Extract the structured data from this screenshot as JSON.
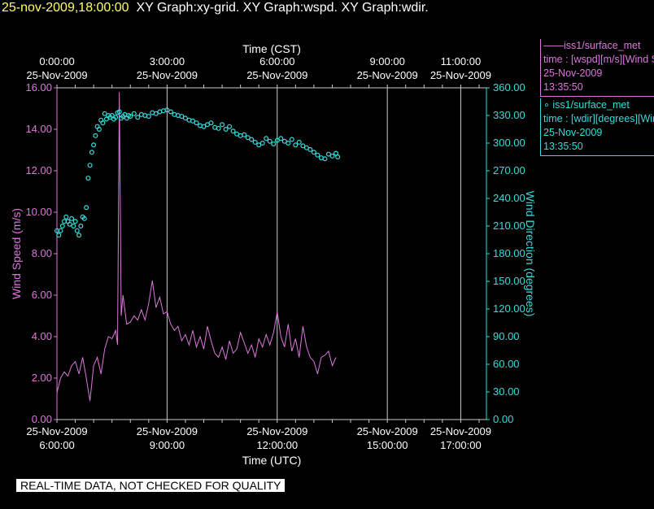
{
  "title": {
    "timestamp": "25-nov-2009,18:00:00",
    "graphs": "XY Graph:xy-grid.  XY Graph:wspd.  XY Graph:wdir."
  },
  "warning": "REAL-TIME DATA, NOT CHECKED FOR QUALITY",
  "legend": [
    {
      "marker": "——",
      "name": "iss1/surface_met",
      "vars": "time : [wspd][m/s][Wind Speed]",
      "date": "25-Nov-2009",
      "time": "13:35:50",
      "color": "#dd77dd"
    },
    {
      "marker": "∘",
      "name": "iss1/surface_met",
      "vars": "time : [wdir][degrees][Wind Direction]",
      "date": "25-Nov-2009",
      "time": "13:35:50",
      "color": "#33dddd"
    }
  ],
  "colors": {
    "speed": "#dd77dd",
    "direction": "#33dddd",
    "grid": "#cccccc",
    "title_time": "#ffff66",
    "text": "#ffffff"
  },
  "chart_data": {
    "type": "line",
    "xlabel_bottom": "Time (UTC)",
    "xlabel_top": "Time (CST)",
    "ylabel_left": "Wind Speed (m/s)",
    "ylabel_right": "Wind Direction (degrees)",
    "x_range_utc_hours": [
      6.0,
      17.7
    ],
    "ylim_left": [
      0,
      16
    ],
    "ylim_right": [
      0,
      360
    ],
    "grid": true,
    "legend_position": "right",
    "left_ticks": [
      "0.00",
      "2.00",
      "4.00",
      "6.00",
      "8.00",
      "10.00",
      "12.00",
      "14.00",
      "16.00"
    ],
    "right_ticks": [
      "0.00",
      "30.00",
      "60.00",
      "90.00",
      "120.00",
      "150.00",
      "180.00",
      "210.00",
      "240.00",
      "270.00",
      "300.00",
      "330.00",
      "360.00"
    ],
    "bottom_ticks": [
      {
        "t": 6.0,
        "date": "25-Nov-2009",
        "time": "6:00:00"
      },
      {
        "t": 9.0,
        "date": "25-Nov-2009",
        "time": "9:00:00"
      },
      {
        "t": 12.0,
        "date": "25-Nov-2009",
        "time": "12:00:00"
      },
      {
        "t": 15.0,
        "date": "25-Nov-2009",
        "time": "15:00:00"
      },
      {
        "t": 17.0,
        "date": "25-Nov-2009",
        "time": "17:00:00"
      }
    ],
    "top_ticks": [
      {
        "t": 6.0,
        "time": "0:00:00",
        "date": "25-Nov-2009"
      },
      {
        "t": 9.0,
        "time": "3:00:00",
        "date": "25-Nov-2009"
      },
      {
        "t": 12.0,
        "time": "6:00:00",
        "date": "25-Nov-2009"
      },
      {
        "t": 15.0,
        "time": "9:00:00",
        "date": "25-Nov-2009"
      },
      {
        "t": 17.0,
        "time": "11:00:00",
        "date": "25-Nov-2009"
      }
    ],
    "series": [
      {
        "name": "iss1/surface_met wspd",
        "axis": "left",
        "style": "line",
        "x_utc_hours": [
          6.0,
          6.1,
          6.2,
          6.3,
          6.4,
          6.5,
          6.6,
          6.7,
          6.8,
          6.9,
          7.0,
          7.1,
          7.2,
          7.3,
          7.4,
          7.5,
          7.6,
          7.65,
          7.7,
          7.75,
          7.8,
          7.9,
          8.0,
          8.1,
          8.2,
          8.3,
          8.4,
          8.5,
          8.6,
          8.7,
          8.8,
          8.9,
          9.0,
          9.1,
          9.2,
          9.3,
          9.4,
          9.5,
          9.6,
          9.7,
          9.8,
          9.9,
          10.0,
          10.1,
          10.2,
          10.3,
          10.4,
          10.5,
          10.6,
          10.7,
          10.8,
          10.9,
          11.0,
          11.1,
          11.2,
          11.3,
          11.4,
          11.5,
          11.6,
          11.7,
          11.8,
          11.9,
          12.0,
          12.1,
          12.2,
          12.3,
          12.4,
          12.5,
          12.6,
          12.7,
          12.8,
          12.9,
          13.0,
          13.1,
          13.2,
          13.3,
          13.4,
          13.5,
          13.6
        ],
        "values": [
          1.3,
          2.0,
          2.3,
          2.1,
          2.6,
          2.8,
          2.2,
          3.0,
          2.0,
          0.9,
          2.6,
          3.0,
          2.2,
          3.4,
          4.0,
          3.9,
          4.3,
          3.6,
          15.8,
          5.0,
          6.0,
          4.6,
          4.7,
          5.0,
          4.8,
          5.3,
          4.8,
          5.6,
          6.7,
          5.4,
          5.9,
          5.1,
          5.2,
          4.6,
          4.3,
          4.5,
          3.8,
          4.1,
          3.6,
          4.3,
          3.5,
          4.0,
          3.4,
          4.5,
          3.8,
          3.2,
          3.0,
          3.5,
          2.9,
          3.8,
          3.2,
          3.4,
          4.2,
          3.7,
          3.2,
          3.6,
          3.0,
          3.9,
          3.5,
          4.1,
          3.6,
          4.2,
          5.2,
          4.0,
          3.5,
          4.6,
          3.3,
          3.9,
          3.0,
          4.5,
          3.5,
          3.0,
          2.8,
          2.2,
          3.0,
          3.1,
          3.3,
          2.6,
          3.0
        ]
      },
      {
        "name": "iss1/surface_met wdir",
        "axis": "right",
        "style": "points",
        "x_utc_hours": [
          6.0,
          6.05,
          6.1,
          6.15,
          6.2,
          6.25,
          6.3,
          6.35,
          6.4,
          6.45,
          6.5,
          6.55,
          6.6,
          6.65,
          6.7,
          6.75,
          6.8,
          6.85,
          6.9,
          6.95,
          7.0,
          7.05,
          7.1,
          7.15,
          7.2,
          7.25,
          7.3,
          7.35,
          7.4,
          7.45,
          7.5,
          7.55,
          7.6,
          7.65,
          7.7,
          7.75,
          7.8,
          7.85,
          7.9,
          7.95,
          8.0,
          8.1,
          8.2,
          8.3,
          8.4,
          8.5,
          8.6,
          8.7,
          8.8,
          8.9,
          9.0,
          9.1,
          9.2,
          9.3,
          9.4,
          9.5,
          9.6,
          9.7,
          9.8,
          9.9,
          10.0,
          10.1,
          10.2,
          10.3,
          10.4,
          10.5,
          10.6,
          10.7,
          10.8,
          10.9,
          11.0,
          11.1,
          11.2,
          11.3,
          11.4,
          11.5,
          11.6,
          11.7,
          11.8,
          11.9,
          12.0,
          12.1,
          12.2,
          12.3,
          12.4,
          12.5,
          12.6,
          12.7,
          12.8,
          12.9,
          13.0,
          13.1,
          13.2,
          13.3,
          13.4,
          13.5,
          13.6,
          13.65
        ],
        "values": [
          205,
          200,
          205,
          210,
          215,
          220,
          215,
          212,
          218,
          210,
          215,
          205,
          200,
          210,
          220,
          218,
          230,
          262,
          276,
          290,
          298,
          308,
          318,
          315,
          325,
          322,
          332,
          326,
          330,
          328,
          330,
          326,
          328,
          333,
          334,
          327,
          329,
          331,
          327,
          330,
          329,
          332,
          328,
          331,
          330,
          329,
          333,
          332,
          334,
          335,
          336,
          334,
          331,
          330,
          329,
          327,
          325,
          324,
          322,
          319,
          318,
          320,
          322,
          317,
          316,
          320,
          315,
          318,
          313,
          310,
          308,
          309,
          306,
          304,
          301,
          298,
          300,
          305,
          302,
          299,
          303,
          305,
          302,
          300,
          304,
          298,
          301,
          297,
          295,
          293,
          290,
          287,
          284,
          283,
          288,
          286,
          289,
          285
        ]
      }
    ]
  }
}
